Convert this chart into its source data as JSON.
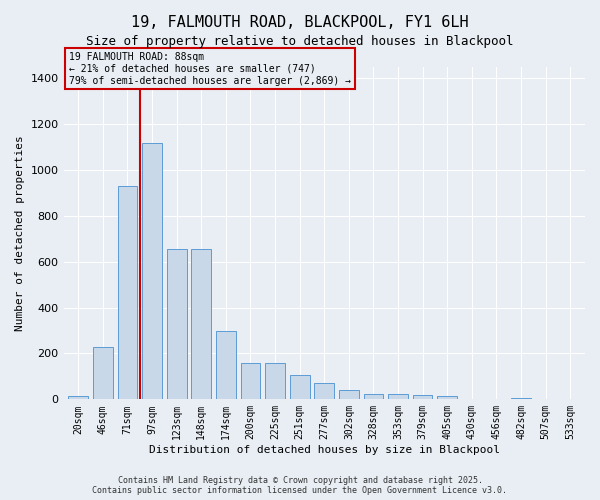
{
  "title_line1": "19, FALMOUTH ROAD, BLACKPOOL, FY1 6LH",
  "title_line2": "Size of property relative to detached houses in Blackpool",
  "xlabel": "Distribution of detached houses by size in Blackpool",
  "ylabel": "Number of detached properties",
  "categories": [
    "20sqm",
    "46sqm",
    "71sqm",
    "97sqm",
    "123sqm",
    "148sqm",
    "174sqm",
    "200sqm",
    "225sqm",
    "251sqm",
    "277sqm",
    "302sqm",
    "328sqm",
    "353sqm",
    "379sqm",
    "405sqm",
    "430sqm",
    "456sqm",
    "482sqm",
    "507sqm",
    "533sqm"
  ],
  "values": [
    15,
    230,
    930,
    1120,
    655,
    655,
    300,
    160,
    160,
    105,
    70,
    40,
    25,
    25,
    20,
    15,
    0,
    0,
    5,
    0,
    0
  ],
  "bar_color": "#c8d8e8",
  "bar_edge_color": "#5b9bd5",
  "background_color": "#e8eef4",
  "grid_color": "#ffffff",
  "vline_x_index": 2.5,
  "vline_color": "#cc0000",
  "annotation_box_text": "19 FALMOUTH ROAD: 88sqm\n← 21% of detached houses are smaller (747)\n79% of semi-detached houses are larger (2,869) →",
  "annotation_box_color": "#cc0000",
  "ylim": [
    0,
    1450
  ],
  "footnote": "Contains HM Land Registry data © Crown copyright and database right 2025.\nContains public sector information licensed under the Open Government Licence v3.0."
}
